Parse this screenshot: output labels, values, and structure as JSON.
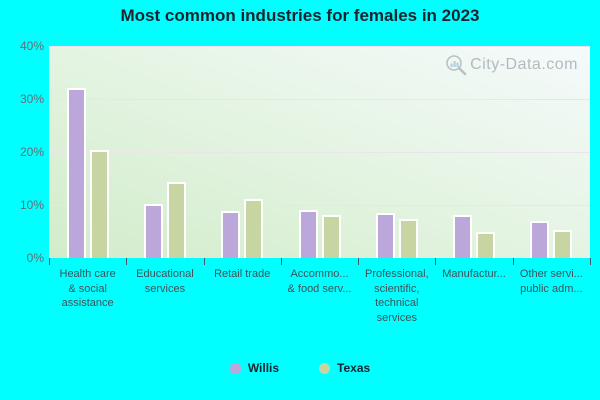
{
  "title": "Most common industries for females in 2023",
  "watermark": "City-Data.com",
  "chart_data": {
    "type": "bar",
    "categories_display": [
      [
        "Health care",
        "& social",
        "assistance"
      ],
      [
        "Educational",
        "services"
      ],
      [
        "Retail trade"
      ],
      [
        "Accommo...",
        "& food serv..."
      ],
      [
        "Professional,",
        "scientific,",
        "technical",
        "services"
      ],
      [
        "Manufactur..."
      ],
      [
        "Other servi...",
        "public adm..."
      ]
    ],
    "series": [
      {
        "name": "Willis",
        "color": "#bca7db",
        "values": [
          32.0,
          10.2,
          8.9,
          9.0,
          8.5,
          8.2,
          7.0
        ]
      },
      {
        "name": "Texas",
        "color": "#c7d5a3",
        "values": [
          20.4,
          14.3,
          11.1,
          8.1,
          7.4,
          4.9,
          5.2
        ]
      }
    ],
    "ylim": [
      0,
      40
    ],
    "yticks": [
      {
        "label": "0%",
        "value": 0
      },
      {
        "label": "10%",
        "value": 10
      },
      {
        "label": "20%",
        "value": 20
      },
      {
        "label": "30%",
        "value": 30
      },
      {
        "label": "40%",
        "value": 40
      }
    ],
    "grid": true,
    "legend_position": "bottom"
  },
  "colors": {
    "page_bg": "#00ffff",
    "bar_border": "#ffffff",
    "gridline": "#f0e2ec",
    "title_text": "#1c2430",
    "axis_text": "#5f6f76",
    "category_text": "#3f5259",
    "legend_text": "#14242e",
    "watermark_text": "#8f959b",
    "tick_mark": "#33616e"
  }
}
